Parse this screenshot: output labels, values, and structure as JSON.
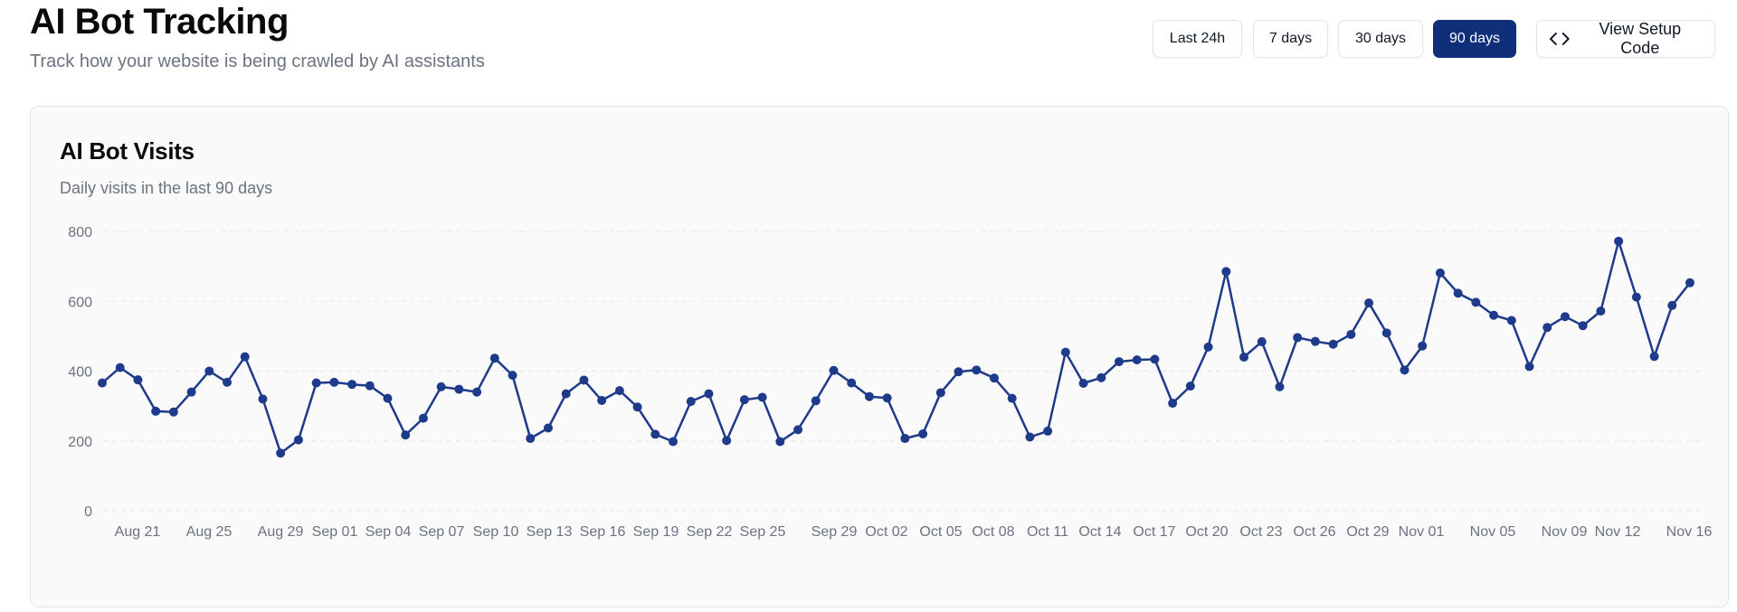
{
  "header": {
    "title": "AI Bot Tracking",
    "subtitle": "Track how your website is being crawled by AI assistants"
  },
  "range_buttons": [
    {
      "label": "Last 24h",
      "active": false
    },
    {
      "label": "7 days",
      "active": false
    },
    {
      "label": "30 days",
      "active": false
    },
    {
      "label": "90 days",
      "active": true
    }
  ],
  "setup_button": {
    "label": "View Setup Code",
    "icon": "code-icon"
  },
  "card": {
    "title": "AI Bot Visits",
    "description": "Daily visits in the last 90 days"
  },
  "colors": {
    "accent": "#0f2f7a",
    "line": "#1e3a8a",
    "grid": "#e5e7eb",
    "muted_text": "#6b7280"
  },
  "chart_data": {
    "type": "line",
    "title": "AI Bot Visits",
    "ylim": [
      0,
      800
    ],
    "yticks": [
      0,
      200,
      400,
      600,
      800
    ],
    "grid": true,
    "x_tick_labels": [
      "Aug 21",
      "Aug 25",
      "Aug 29",
      "Sep 01",
      "Sep 04",
      "Sep 07",
      "Sep 10",
      "Sep 13",
      "Sep 16",
      "Sep 19",
      "Sep 22",
      "Sep 25",
      "Sep 29",
      "Oct 02",
      "Oct 05",
      "Oct 08",
      "Oct 11",
      "Oct 14",
      "Oct 17",
      "Oct 20",
      "Oct 23",
      "Oct 26",
      "Oct 29",
      "Nov 01",
      "Nov 05",
      "Nov 09",
      "Nov 12",
      "Nov 16"
    ],
    "series": [
      {
        "values": [
          366,
          410,
          375,
          285,
          283,
          340,
          400,
          368,
          441,
          320,
          165,
          203,
          366,
          368,
          362,
          358,
          322,
          217,
          265,
          355,
          348,
          340,
          437,
          388,
          207,
          237,
          335,
          374,
          316,
          344,
          297,
          219,
          198,
          313,
          335,
          201,
          318,
          325,
          198,
          232,
          315,
          402,
          366,
          327,
          323,
          207,
          220,
          338,
          398,
          403,
          380,
          322,
          211,
          228,
          454,
          365,
          381,
          427,
          432,
          434,
          308,
          357,
          469,
          685,
          440,
          484,
          355,
          496,
          485,
          477,
          505,
          595,
          509,
          403,
          472,
          681,
          623,
          597,
          560,
          545,
          413,
          525,
          556,
          530,
          572,
          772,
          612,
          442,
          588,
          653
        ]
      }
    ]
  }
}
